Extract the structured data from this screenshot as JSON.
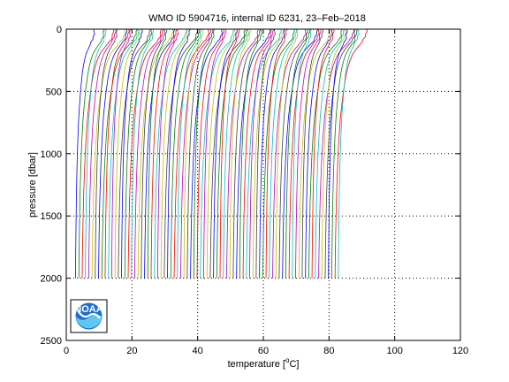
{
  "chart_data": {
    "type": "line",
    "title": "WMO ID 5904716, internal ID 6231, 23–Feb–2018",
    "xlabel": "temperature [°C]",
    "xlabel_parts": {
      "prefix": "temperature [",
      "sup": "o",
      "suffix": "C]"
    },
    "ylabel": "pressure [dbar]",
    "xlim": [
      0,
      120
    ],
    "ylim": [
      0,
      2500
    ],
    "y_reversed": true,
    "grid": true,
    "grid_style": "dotted",
    "xticks": [
      0,
      20,
      40,
      60,
      80,
      100,
      120
    ],
    "yticks": [
      0,
      500,
      1000,
      1500,
      2000,
      2500
    ],
    "profile_pressures": [
      0,
      20,
      40,
      60,
      80,
      100,
      130,
      160,
      200,
      250,
      300,
      350,
      400,
      500,
      600,
      700,
      800,
      900,
      1000,
      1100,
      1200,
      1300,
      1400,
      1500,
      1600,
      1700,
      1800,
      1900,
      2000
    ],
    "profile_temperature_anomaly": [
      8.2,
      8.1,
      8.0,
      7.8,
      7.5,
      7.1,
      6.3,
      5.5,
      4.6,
      3.9,
      3.4,
      3.0,
      2.7,
      2.2,
      1.8,
      1.45,
      1.2,
      1.0,
      0.82,
      0.68,
      0.56,
      0.45,
      0.36,
      0.29,
      0.22,
      0.16,
      0.11,
      0.06,
      0.03
    ],
    "series_offsets_note": "Each successive profile is offset by 1 degree C (waterfall plot); profiles 0..80.",
    "series_count": 81,
    "series_base_temperature": 2.8,
    "series_offset_step": 1.0,
    "series_colors": [
      "#0000ff",
      "#008000",
      "#ff0000",
      "#00bfbf",
      "#bf00bf",
      "#bfbf00",
      "#3f3f3f"
    ],
    "logo": "noaa-logo"
  }
}
